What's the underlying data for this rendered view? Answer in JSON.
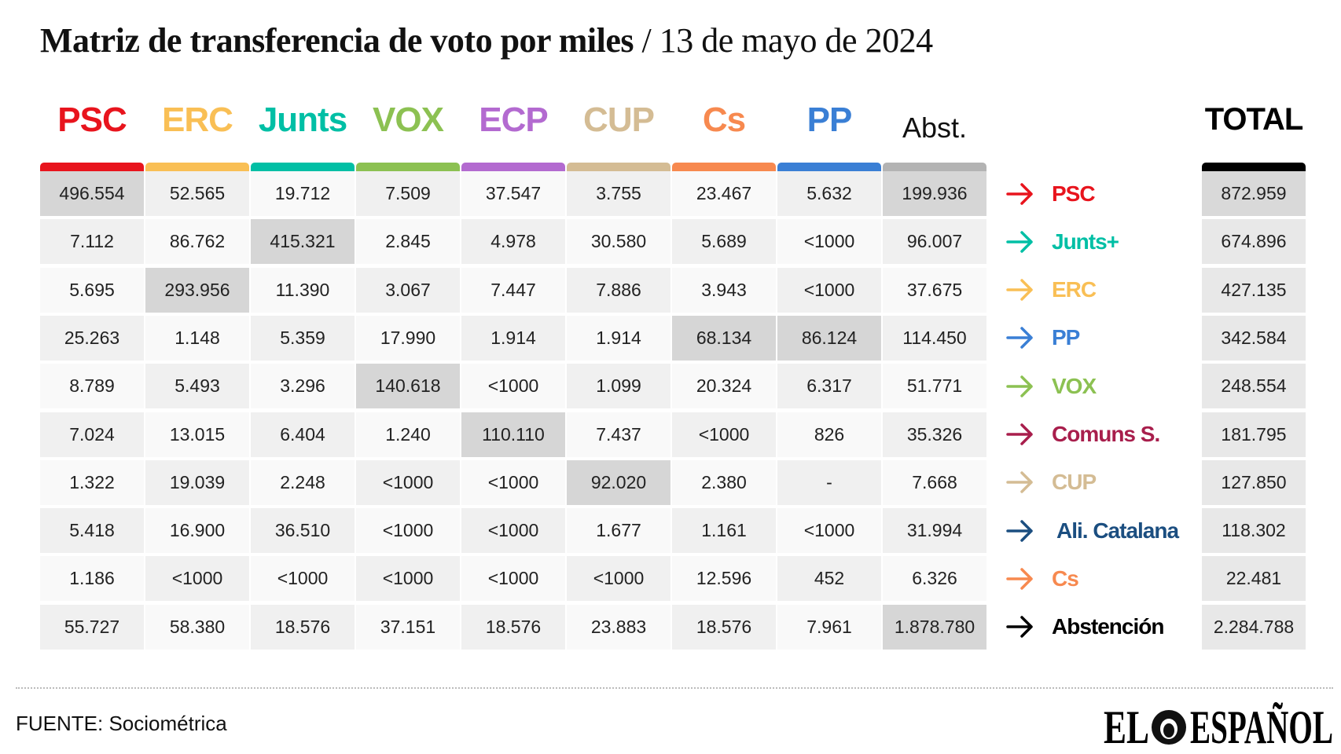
{
  "title": {
    "main": "Matriz de transferencia de voto por miles",
    "sub": "/ 13 de mayo de 2024"
  },
  "columns": [
    {
      "label": "PSC",
      "color": "#e8141d"
    },
    {
      "label": "ERC",
      "color": "#f9bf55"
    },
    {
      "label": "Junts",
      "color": "#00bfa5"
    },
    {
      "label": "VOX",
      "color": "#8cc152"
    },
    {
      "label": "ECP",
      "color": "#b36ad0"
    },
    {
      "label": "CUP",
      "color": "#d4bc94"
    },
    {
      "label": "Cs",
      "color": "#f7894f"
    },
    {
      "label": "PP",
      "color": "#3a7fd5"
    },
    {
      "label": "Abst.",
      "color": "#b3b3b3"
    }
  ],
  "total_label": "TOTAL",
  "total_color": "#000000",
  "rows": [
    {
      "label": "PSC",
      "color": "#e8141d",
      "values": [
        "496.554",
        "52.565",
        "19.712",
        "7.509",
        "37.547",
        "3.755",
        "23.467",
        "5.632",
        "199.936"
      ],
      "highlight": [
        0,
        8
      ],
      "total": "872.959"
    },
    {
      "label": "Junts+",
      "color": "#00bfa5",
      "values": [
        "7.112",
        "86.762",
        "415.321",
        "2.845",
        "4.978",
        "30.580",
        "5.689",
        "<1000",
        "96.007"
      ],
      "highlight": [
        2
      ],
      "total": "674.896"
    },
    {
      "label": "ERC",
      "color": "#f9bf55",
      "values": [
        "5.695",
        "293.956",
        "11.390",
        "3.067",
        "7.447",
        "7.886",
        "3.943",
        "<1000",
        "37.675"
      ],
      "highlight": [
        1
      ],
      "total": "427.135"
    },
    {
      "label": "PP",
      "color": "#3a7fd5",
      "values": [
        "25.263",
        "1.148",
        "5.359",
        "17.990",
        "1.914",
        "1.914",
        "68.134",
        "86.124",
        "114.450"
      ],
      "highlight": [
        6,
        7
      ],
      "total": "342.584"
    },
    {
      "label": "VOX",
      "color": "#8cc152",
      "values": [
        "8.789",
        "5.493",
        "3.296",
        "140.618",
        "<1000",
        "1.099",
        "20.324",
        "6.317",
        "51.771"
      ],
      "highlight": [
        3
      ],
      "total": "248.554"
    },
    {
      "label": "Comuns S.",
      "color": "#a81e4c",
      "values": [
        "7.024",
        "13.015",
        "6.404",
        "1.240",
        "110.110",
        "7.437",
        "<1000",
        "826",
        "35.326"
      ],
      "highlight": [
        4
      ],
      "total": "181.795"
    },
    {
      "label": "CUP",
      "color": "#d4bc94",
      "values": [
        "1.322",
        "19.039",
        "2.248",
        "<1000",
        "<1000",
        "92.020",
        "2.380",
        "-",
        "7.668"
      ],
      "highlight": [
        5
      ],
      "total": "127.850"
    },
    {
      "label": "Ali. Catalana",
      "color": "#1b4e80",
      "values": [
        "5.418",
        "16.900",
        "36.510",
        "<1000",
        "<1000",
        "1.677",
        "1.161",
        "<1000",
        "31.994"
      ],
      "highlight": [],
      "total": "118.302"
    },
    {
      "label": "Cs",
      "color": "#f7894f",
      "values": [
        "1.186",
        "<1000",
        "<1000",
        "<1000",
        "<1000",
        "<1000",
        "12.596",
        "452",
        "6.326"
      ],
      "highlight": [],
      "total": "22.481"
    },
    {
      "label": "Abstención",
      "color": "#000000",
      "values": [
        "55.727",
        "58.380",
        "18.576",
        "37.151",
        "18.576",
        "23.883",
        "18.576",
        "7.961",
        "1.878.780"
      ],
      "highlight": [
        8
      ],
      "total": "2.284.788"
    }
  ],
  "footer": {
    "source": "FUENTE: Sociométrica",
    "logo": "EL ESPAÑOL"
  }
}
